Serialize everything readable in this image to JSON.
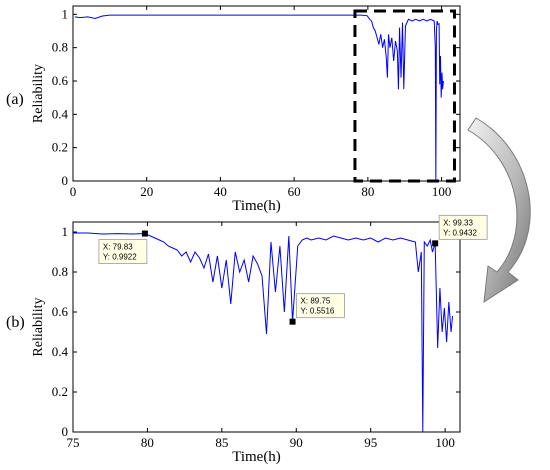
{
  "figure": {
    "background": "#ffffff",
    "line_color": "#0000ff"
  },
  "chart_data": [
    {
      "type": "line",
      "panel_label": "(a)",
      "xlabel": "Time(h)",
      "ylabel": "Reliability",
      "xlim": [
        0,
        105
      ],
      "ylim": [
        0,
        1.05
      ],
      "xticks": [
        0,
        20,
        40,
        60,
        80,
        100
      ],
      "yticks": [
        0,
        0.2,
        0.4,
        0.6,
        0.8,
        1
      ],
      "ytick_labels": [
        "0",
        "0.2",
        "0.4",
        "0.6",
        "0.8",
        "1"
      ],
      "grid": false,
      "highlight_box": {
        "x": [
          76.5,
          103.5
        ],
        "y": [
          0,
          1.02
        ],
        "style": "dashed"
      },
      "series": [
        {
          "color": "#0000ff",
          "x": [
            0.5,
            2,
            4,
            6,
            8,
            10,
            15,
            20,
            30,
            40,
            50,
            60,
            70,
            76,
            78,
            79.8,
            80.5,
            81,
            81.5,
            82,
            82.5,
            83,
            83.5,
            84,
            84.5,
            85,
            85.3,
            85.6,
            86,
            86.5,
            87,
            87.5,
            88,
            88.3,
            88.6,
            89,
            89.4,
            89.75,
            90.2,
            91,
            92,
            93,
            94,
            95,
            96,
            97,
            98,
            98.3,
            98.45,
            98.6,
            98.8,
            99,
            99.33,
            99.5,
            99.7,
            99.9,
            100.1,
            100.3,
            100.5
          ],
          "y": [
            0.985,
            0.98,
            0.985,
            0.975,
            0.99,
            0.995,
            0.995,
            0.995,
            0.995,
            0.995,
            0.995,
            0.995,
            0.995,
            0.995,
            0.995,
            0.992,
            0.97,
            0.96,
            0.92,
            0.9,
            0.86,
            0.82,
            0.88,
            0.8,
            0.85,
            0.74,
            0.62,
            0.88,
            0.8,
            0.86,
            0.72,
            0.84,
            0.78,
            0.55,
            0.92,
            0.62,
            0.95,
            0.5516,
            0.93,
            0.97,
            0.96,
            0.97,
            0.96,
            0.97,
            0.96,
            0.97,
            0.96,
            0.8,
            0.0,
            0.9,
            0.96,
            0.94,
            0.9432,
            0.58,
            0.75,
            0.5,
            0.65,
            0.55,
            0.6
          ]
        }
      ],
      "annotations": []
    },
    {
      "type": "line",
      "panel_label": "(b)",
      "xlabel": "Time(h)",
      "ylabel": "Reliability",
      "xlim": [
        75,
        101
      ],
      "ylim": [
        0,
        1.05
      ],
      "xticks": [
        75,
        80,
        85,
        90,
        95,
        100
      ],
      "yticks": [
        0,
        0.2,
        0.4,
        0.6,
        0.8,
        1
      ],
      "ytick_labels": [
        "0",
        "0.2",
        "0.4",
        "0.6",
        "0.8",
        "1"
      ],
      "grid": false,
      "series": [
        {
          "color": "#0000ff",
          "x": [
            75,
            76,
            77,
            78,
            79,
            79.83,
            80.2,
            80.5,
            80.8,
            81.1,
            81.4,
            81.7,
            82,
            82.3,
            82.6,
            82.9,
            83.2,
            83.5,
            83.8,
            84.1,
            84.4,
            84.7,
            85,
            85.3,
            85.6,
            85.9,
            86.2,
            86.5,
            86.8,
            87.1,
            87.4,
            87.7,
            88,
            88.3,
            88.6,
            88.9,
            89.2,
            89.5,
            89.75,
            90.1,
            90.4,
            90.7,
            91,
            91.5,
            92,
            92.5,
            93,
            93.5,
            94,
            94.5,
            95,
            95.5,
            96,
            96.5,
            97,
            97.5,
            98,
            98.2,
            98.4,
            98.5,
            98.6,
            98.8,
            99,
            99.15,
            99.33,
            99.5,
            99.65,
            99.8,
            99.95,
            100.1,
            100.25,
            100.4,
            100.5
          ],
          "y": [
            0.995,
            0.995,
            0.99,
            0.992,
            0.99,
            0.9922,
            0.98,
            0.97,
            0.96,
            0.95,
            0.93,
            0.92,
            0.91,
            0.88,
            0.9,
            0.85,
            0.9,
            0.87,
            0.82,
            0.89,
            0.75,
            0.88,
            0.72,
            0.86,
            0.64,
            0.9,
            0.8,
            0.86,
            0.75,
            0.88,
            0.84,
            0.78,
            0.49,
            0.95,
            0.7,
            0.93,
            0.6,
            0.98,
            0.5516,
            0.93,
            0.96,
            0.97,
            0.96,
            0.97,
            0.96,
            0.98,
            0.97,
            0.96,
            0.97,
            0.96,
            0.97,
            0.95,
            0.97,
            0.96,
            0.97,
            0.96,
            0.95,
            0.8,
            0.9,
            0.0,
            0.95,
            0.93,
            0.96,
            0.9,
            0.9432,
            0.42,
            0.72,
            0.5,
            0.62,
            0.45,
            0.65,
            0.5,
            0.58
          ]
        }
      ],
      "annotations": [
        {
          "x": 79.83,
          "y": 0.9922,
          "lines": [
            "X: 79.83",
            "Y: 0.9922"
          ],
          "placement": "below-left"
        },
        {
          "x": 89.75,
          "y": 0.5516,
          "lines": [
            "X: 89.75",
            "Y: 0.5516"
          ],
          "placement": "above-right"
        },
        {
          "x": 99.33,
          "y": 0.9432,
          "lines": [
            "X: 99.33",
            "Y: 0.9432"
          ],
          "placement": "above-right"
        }
      ]
    }
  ]
}
